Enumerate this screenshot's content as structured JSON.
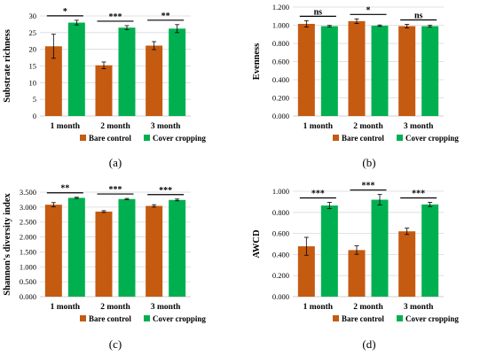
{
  "colors": {
    "bare": "#C55A11",
    "cover": "#00B050",
    "grid": "#d9d9d9",
    "axis": "#bfbfbf",
    "errorbar": "#000000"
  },
  "chart_data": [
    {
      "type": "bar",
      "panel_label": "(a)",
      "ylabel": "Substrate richness",
      "categories": [
        "1 month",
        "2 month",
        "3 month"
      ],
      "ylim": [
        0,
        30
      ],
      "yticks": [
        "0",
        "5",
        "10",
        "15",
        "20",
        "25",
        "30"
      ],
      "grid": true,
      "legend_position": "bottom",
      "series": [
        {
          "name": "Bare control",
          "values": [
            20.9,
            15.2,
            21.1
          ],
          "errors": [
            3.6,
            1.0,
            1.2
          ]
        },
        {
          "name": "Cover cropping",
          "values": [
            28.0,
            26.5,
            26.2
          ],
          "errors": [
            0.7,
            0.6,
            1.2
          ]
        }
      ],
      "significance": [
        "*",
        "***",
        "**"
      ]
    },
    {
      "type": "bar",
      "panel_label": "(b)",
      "ylabel": "Evenness",
      "categories": [
        "1 month",
        "2 month",
        "3 month"
      ],
      "ylim": [
        0,
        1.2
      ],
      "yticks": [
        "0.000",
        "0.200",
        "0.400",
        "0.600",
        "0.800",
        "1.000",
        "1.200"
      ],
      "grid": true,
      "legend_position": "bottom",
      "series": [
        {
          "name": "Bare control",
          "values": [
            1.015,
            1.045,
            0.99
          ],
          "errors": [
            0.035,
            0.025,
            0.02
          ]
        },
        {
          "name": "Cover cropping",
          "values": [
            0.99,
            0.995,
            0.99
          ],
          "errors": [
            0.008,
            0.008,
            0.01
          ]
        }
      ],
      "significance": [
        "ns",
        "*",
        "ns"
      ]
    },
    {
      "type": "bar",
      "panel_label": "(c)",
      "ylabel": "Shannon's diversity index",
      "categories": [
        "1 month",
        "2 month",
        "3 month"
      ],
      "ylim": [
        0,
        3.5
      ],
      "yticks": [
        "0.000",
        "0.500",
        "1.000",
        "1.500",
        "2.000",
        "2.500",
        "3.000",
        "3.500"
      ],
      "grid": true,
      "legend_position": "bottom",
      "series": [
        {
          "name": "Bare control",
          "values": [
            3.08,
            2.85,
            3.04
          ],
          "errors": [
            0.07,
            0.03,
            0.04
          ]
        },
        {
          "name": "Cover cropping",
          "values": [
            3.31,
            3.27,
            3.24
          ],
          "errors": [
            0.02,
            0.02,
            0.03
          ]
        }
      ],
      "significance": [
        "**",
        "***",
        "***"
      ]
    },
    {
      "type": "bar",
      "panel_label": "(d)",
      "ylabel": "AWCD",
      "categories": [
        "1 month",
        "2 month",
        "3 month"
      ],
      "ylim": [
        0,
        1.0
      ],
      "yticks": [
        "0.000",
        "0.200",
        "0.400",
        "0.600",
        "0.800",
        "1.000"
      ],
      "grid": true,
      "legend_position": "bottom",
      "series": [
        {
          "name": "Bare control",
          "values": [
            0.478,
            0.442,
            0.62
          ],
          "errors": [
            0.085,
            0.04,
            0.03
          ]
        },
        {
          "name": "Cover cropping",
          "values": [
            0.865,
            0.92,
            0.875
          ],
          "errors": [
            0.03,
            0.05,
            0.02
          ]
        }
      ],
      "significance": [
        "***",
        "***",
        "***"
      ]
    }
  ]
}
